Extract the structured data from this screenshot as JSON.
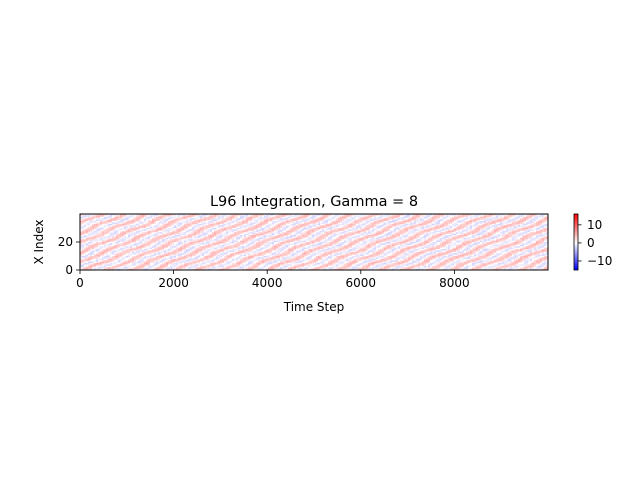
{
  "chart_data": {
    "type": "heatmap",
    "title": "L96 Integration, Gamma = 8",
    "xlabel": "Time Step",
    "ylabel": "X Index",
    "xlim": [
      0,
      10000
    ],
    "ylim": [
      0,
      40
    ],
    "x_ticks": [
      0,
      2000,
      4000,
      6000,
      8000
    ],
    "x_tick_labels": [
      "0",
      "2000",
      "4000",
      "6000",
      "8000"
    ],
    "y_ticks": [
      0,
      20
    ],
    "y_tick_labels": [
      "0",
      "20"
    ],
    "rows": 40,
    "colormap": "bwr",
    "color_min_color": "#0000ff",
    "color_mid_color": "#ffffff",
    "color_max_color": "#ff0000",
    "colorbar": {
      "vmin": -15,
      "vmax": 16,
      "ticks": [
        10,
        0,
        -10
      ],
      "tick_labels": [
        "10",
        "0",
        "−10"
      ]
    },
    "grid": false
  }
}
